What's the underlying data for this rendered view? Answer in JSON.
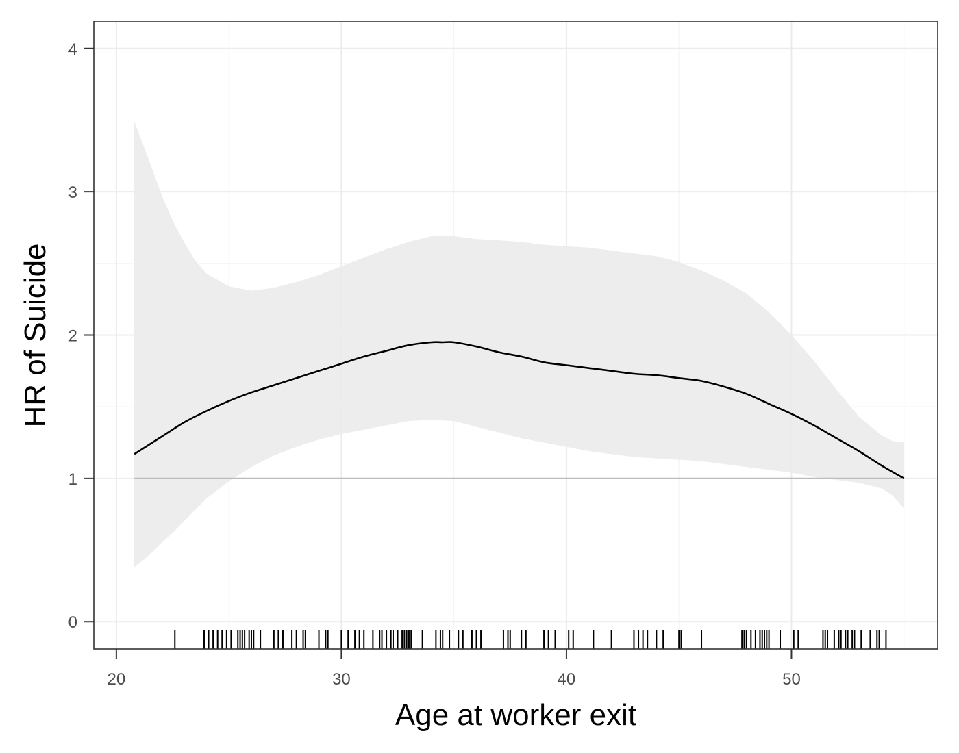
{
  "chart_data": {
    "type": "line",
    "title": "",
    "xlabel": "Age at worker exit",
    "ylabel": "HR of Suicide",
    "xlim": [
      19,
      56.5
    ],
    "ylim": [
      -0.19,
      4.19
    ],
    "x_ticks": [
      20,
      30,
      40,
      50
    ],
    "y_ticks": [
      0,
      1,
      2,
      3,
      4
    ],
    "grid": true,
    "legend": "none",
    "reference_line": {
      "y": 1,
      "color": "#bdbdbd"
    },
    "series": [
      {
        "line_color": "#000000",
        "points": [
          {
            "x": 20.8,
            "y": 1.17
          },
          {
            "x": 22.0,
            "y": 1.29
          },
          {
            "x": 23.0,
            "y": 1.39
          },
          {
            "x": 24.0,
            "y": 1.47
          },
          {
            "x": 25.0,
            "y": 1.54
          },
          {
            "x": 26.0,
            "y": 1.6
          },
          {
            "x": 27.0,
            "y": 1.65
          },
          {
            "x": 28.0,
            "y": 1.7
          },
          {
            "x": 29.0,
            "y": 1.75
          },
          {
            "x": 30.0,
            "y": 1.8
          },
          {
            "x": 31.0,
            "y": 1.85
          },
          {
            "x": 32.0,
            "y": 1.89
          },
          {
            "x": 33.0,
            "y": 1.93
          },
          {
            "x": 34.0,
            "y": 1.95
          },
          {
            "x": 34.5,
            "y": 1.95
          },
          {
            "x": 35.0,
            "y": 1.95
          },
          {
            "x": 36.0,
            "y": 1.92
          },
          {
            "x": 37.0,
            "y": 1.88
          },
          {
            "x": 38.0,
            "y": 1.85
          },
          {
            "x": 39.0,
            "y": 1.81
          },
          {
            "x": 40.0,
            "y": 1.79
          },
          {
            "x": 41.0,
            "y": 1.77
          },
          {
            "x": 42.0,
            "y": 1.75
          },
          {
            "x": 43.0,
            "y": 1.73
          },
          {
            "x": 44.0,
            "y": 1.72
          },
          {
            "x": 45.0,
            "y": 1.7
          },
          {
            "x": 46.0,
            "y": 1.68
          },
          {
            "x": 47.0,
            "y": 1.64
          },
          {
            "x": 48.0,
            "y": 1.59
          },
          {
            "x": 49.0,
            "y": 1.52
          },
          {
            "x": 50.0,
            "y": 1.45
          },
          {
            "x": 51.0,
            "y": 1.37
          },
          {
            "x": 52.0,
            "y": 1.28
          },
          {
            "x": 53.0,
            "y": 1.19
          },
          {
            "x": 54.0,
            "y": 1.09
          },
          {
            "x": 55.0,
            "y": 1.0
          }
        ]
      }
    ],
    "confidence_band": {
      "fill_color": "#ebebeb",
      "points": [
        {
          "x": 20.8,
          "lower": 0.38,
          "upper": 3.49
        },
        {
          "x": 21.5,
          "lower": 0.47,
          "upper": 3.2
        },
        {
          "x": 22.0,
          "lower": 0.55,
          "upper": 2.98
        },
        {
          "x": 22.5,
          "lower": 0.62,
          "upper": 2.8
        },
        {
          "x": 23.0,
          "lower": 0.7,
          "upper": 2.65
        },
        {
          "x": 23.5,
          "lower": 0.78,
          "upper": 2.52
        },
        {
          "x": 24.0,
          "lower": 0.86,
          "upper": 2.43
        },
        {
          "x": 25.0,
          "lower": 0.98,
          "upper": 2.34
        },
        {
          "x": 26.0,
          "lower": 1.08,
          "upper": 2.31
        },
        {
          "x": 27.0,
          "lower": 1.16,
          "upper": 2.33
        },
        {
          "x": 28.0,
          "lower": 1.22,
          "upper": 2.37
        },
        {
          "x": 29.0,
          "lower": 1.27,
          "upper": 2.42
        },
        {
          "x": 30.0,
          "lower": 1.31,
          "upper": 2.48
        },
        {
          "x": 31.0,
          "lower": 1.34,
          "upper": 2.54
        },
        {
          "x": 32.0,
          "lower": 1.37,
          "upper": 2.6
        },
        {
          "x": 33.0,
          "lower": 1.4,
          "upper": 2.65
        },
        {
          "x": 34.0,
          "lower": 1.41,
          "upper": 2.69
        },
        {
          "x": 35.0,
          "lower": 1.4,
          "upper": 2.69
        },
        {
          "x": 36.0,
          "lower": 1.36,
          "upper": 2.67
        },
        {
          "x": 37.0,
          "lower": 1.32,
          "upper": 2.66
        },
        {
          "x": 38.0,
          "lower": 1.28,
          "upper": 2.65
        },
        {
          "x": 39.0,
          "lower": 1.25,
          "upper": 2.63
        },
        {
          "x": 40.0,
          "lower": 1.22,
          "upper": 2.62
        },
        {
          "x": 41.0,
          "lower": 1.19,
          "upper": 2.61
        },
        {
          "x": 42.0,
          "lower": 1.17,
          "upper": 2.59
        },
        {
          "x": 43.0,
          "lower": 1.15,
          "upper": 2.57
        },
        {
          "x": 44.0,
          "lower": 1.14,
          "upper": 2.55
        },
        {
          "x": 45.0,
          "lower": 1.13,
          "upper": 2.51
        },
        {
          "x": 46.0,
          "lower": 1.12,
          "upper": 2.45
        },
        {
          "x": 47.0,
          "lower": 1.1,
          "upper": 2.38
        },
        {
          "x": 48.0,
          "lower": 1.08,
          "upper": 2.29
        },
        {
          "x": 49.0,
          "lower": 1.06,
          "upper": 2.16
        },
        {
          "x": 50.0,
          "lower": 1.04,
          "upper": 2.0
        },
        {
          "x": 51.0,
          "lower": 1.01,
          "upper": 1.82
        },
        {
          "x": 52.0,
          "lower": 0.99,
          "upper": 1.62
        },
        {
          "x": 53.0,
          "lower": 0.97,
          "upper": 1.43
        },
        {
          "x": 54.0,
          "lower": 0.93,
          "upper": 1.3
        },
        {
          "x": 54.5,
          "lower": 0.88,
          "upper": 1.26
        },
        {
          "x": 55.0,
          "lower": 0.79,
          "upper": 1.25
        }
      ]
    },
    "rug": {
      "color": "#000000",
      "values": [
        22.6,
        23.9,
        24.1,
        24.3,
        24.5,
        24.7,
        24.9,
        25.1,
        25.4,
        25.5,
        25.6,
        25.7,
        25.9,
        26.0,
        26.1,
        26.4,
        27.0,
        27.2,
        27.4,
        27.8,
        28.0,
        28.3,
        28.4,
        29.0,
        29.3,
        29.4,
        30.0,
        30.3,
        30.6,
        30.8,
        31.0,
        31.4,
        31.7,
        31.8,
        32.0,
        32.2,
        32.3,
        32.5,
        32.7,
        32.8,
        32.9,
        33.0,
        33.1,
        33.6,
        34.2,
        34.4,
        34.5,
        34.8,
        35.2,
        35.4,
        35.8,
        36.0,
        36.2,
        37.2,
        37.4,
        37.5,
        38.0,
        38.2,
        39.0,
        39.2,
        39.5,
        40.1,
        40.3,
        41.2,
        42.0,
        43.0,
        43.2,
        43.4,
        43.6,
        44.0,
        44.3,
        45.0,
        45.1,
        46.0,
        47.8,
        47.9,
        48.0,
        48.2,
        48.4,
        48.6,
        48.7,
        48.8,
        48.9,
        49.0,
        49.5,
        50.1,
        50.3,
        51.4,
        51.5,
        51.6,
        51.9,
        52.1,
        52.2,
        52.4,
        52.5,
        52.7,
        52.8,
        53.1,
        53.5,
        53.8,
        53.9,
        54.2
      ]
    }
  }
}
